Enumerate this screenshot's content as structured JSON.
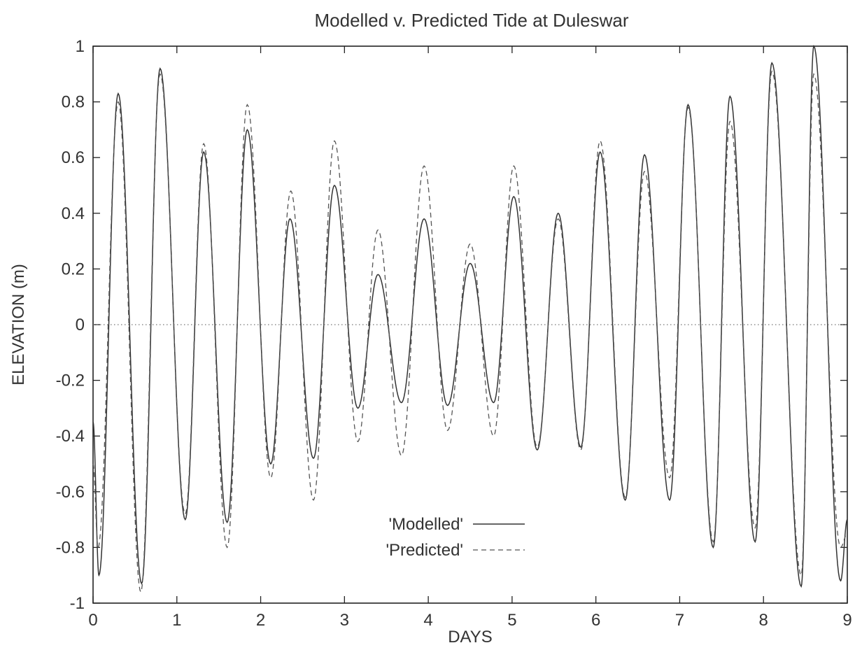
{
  "chart_data": {
    "type": "line",
    "title": "Modelled v. Predicted Tide at Duleswar",
    "xlabel": "DAYS",
    "ylabel": "ELEVATION (m)",
    "xlim": [
      0,
      9
    ],
    "ylim": [
      -1,
      1
    ],
    "xticks": [
      0,
      1,
      2,
      3,
      4,
      5,
      6,
      7,
      8,
      9
    ],
    "yticks": [
      -1,
      -0.8,
      -0.6,
      -0.4,
      -0.2,
      0,
      0.2,
      0.4,
      0.6,
      0.8,
      1
    ],
    "grid": false,
    "zero_line": true,
    "legend_position": "bottom-center",
    "series": [
      {
        "name": "'Modelled'",
        "style": "solid",
        "extrema": [
          [
            0.0,
            -0.35
          ],
          [
            0.07,
            -0.9
          ],
          [
            0.3,
            0.83
          ],
          [
            0.58,
            -0.93
          ],
          [
            0.8,
            0.92
          ],
          [
            1.1,
            -0.7
          ],
          [
            1.32,
            0.62
          ],
          [
            1.6,
            -0.71
          ],
          [
            1.84,
            0.7
          ],
          [
            2.12,
            -0.5
          ],
          [
            2.35,
            0.38
          ],
          [
            2.63,
            -0.48
          ],
          [
            2.88,
            0.5
          ],
          [
            3.16,
            -0.3
          ],
          [
            3.4,
            0.18
          ],
          [
            3.68,
            -0.28
          ],
          [
            3.95,
            0.38
          ],
          [
            4.23,
            -0.29
          ],
          [
            4.5,
            0.22
          ],
          [
            4.78,
            -0.28
          ],
          [
            5.02,
            0.46
          ],
          [
            5.3,
            -0.45
          ],
          [
            5.55,
            0.4
          ],
          [
            5.82,
            -0.44
          ],
          [
            6.05,
            0.62
          ],
          [
            6.35,
            -0.63
          ],
          [
            6.58,
            0.61
          ],
          [
            6.88,
            -0.63
          ],
          [
            7.1,
            0.79
          ],
          [
            7.4,
            -0.8
          ],
          [
            7.6,
            0.82
          ],
          [
            7.9,
            -0.78
          ],
          [
            8.1,
            0.94
          ],
          [
            8.45,
            -0.94
          ],
          [
            8.6,
            1.0
          ],
          [
            8.92,
            -0.92
          ],
          [
            9.0,
            -0.7
          ]
        ]
      },
      {
        "name": "'Predicted'",
        "style": "dashed",
        "extrema": [
          [
            0.0,
            -0.5
          ],
          [
            0.06,
            -0.8
          ],
          [
            0.3,
            0.8
          ],
          [
            0.57,
            -0.96
          ],
          [
            0.8,
            0.9
          ],
          [
            1.1,
            -0.68
          ],
          [
            1.32,
            0.65
          ],
          [
            1.6,
            -0.8
          ],
          [
            1.84,
            0.79
          ],
          [
            2.12,
            -0.55
          ],
          [
            2.36,
            0.48
          ],
          [
            2.63,
            -0.63
          ],
          [
            2.88,
            0.66
          ],
          [
            3.16,
            -0.42
          ],
          [
            3.4,
            0.34
          ],
          [
            3.68,
            -0.47
          ],
          [
            3.95,
            0.57
          ],
          [
            4.23,
            -0.38
          ],
          [
            4.5,
            0.29
          ],
          [
            4.78,
            -0.4
          ],
          [
            5.02,
            0.57
          ],
          [
            5.3,
            -0.44
          ],
          [
            5.55,
            0.38
          ],
          [
            5.82,
            -0.45
          ],
          [
            6.05,
            0.66
          ],
          [
            6.35,
            -0.62
          ],
          [
            6.58,
            0.55
          ],
          [
            6.88,
            -0.55
          ],
          [
            7.1,
            0.78
          ],
          [
            7.4,
            -0.78
          ],
          [
            7.6,
            0.73
          ],
          [
            7.9,
            -0.73
          ],
          [
            8.1,
            0.91
          ],
          [
            8.45,
            -0.9
          ],
          [
            8.6,
            0.9
          ],
          [
            8.92,
            -0.8
          ],
          [
            9.0,
            -0.75
          ]
        ]
      }
    ]
  }
}
